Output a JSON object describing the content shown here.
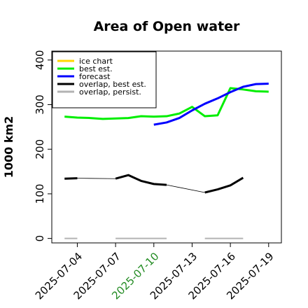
{
  "chart_data": {
    "type": "line",
    "title": "Area of Open water",
    "ylabel": "1000 km2",
    "xlabel": "",
    "x_start": "2025-07-02",
    "x_end": "2025-07-20",
    "ylim": [
      -10,
      420
    ],
    "yticks": [
      0,
      100,
      200,
      300,
      400
    ],
    "xticks": [
      {
        "date": "2025-07-04",
        "label": "2025-07-04",
        "color": "#000000"
      },
      {
        "date": "2025-07-07",
        "label": "2025-07-07",
        "color": "#000000"
      },
      {
        "date": "2025-07-10",
        "label": "2025-07-10",
        "color": "#228b22"
      },
      {
        "date": "2025-07-13",
        "label": "2025-07-13",
        "color": "#000000"
      },
      {
        "date": "2025-07-16",
        "label": "2025-07-16",
        "color": "#000000"
      },
      {
        "date": "2025-07-19",
        "label": "2025-07-19",
        "color": "#000000"
      }
    ],
    "legend_position": "top-left",
    "grid": false,
    "series": [
      {
        "name": "ice chart",
        "color": "#ffd700",
        "width": 3,
        "segments": []
      },
      {
        "name": "best est.",
        "color": "#00ee00",
        "width": 3,
        "segments": [
          [
            [
              "2025-07-03",
              273
            ],
            [
              "2025-07-04",
              271
            ],
            [
              "2025-07-05",
              270
            ],
            [
              "2025-07-06",
              268
            ],
            [
              "2025-07-07",
              269
            ],
            [
              "2025-07-08",
              270
            ],
            [
              "2025-07-09",
              274
            ],
            [
              "2025-07-10",
              273
            ],
            [
              "2025-07-11",
              274
            ],
            [
              "2025-07-12",
              280
            ],
            [
              "2025-07-13",
              295
            ],
            [
              "2025-07-14",
              274
            ],
            [
              "2025-07-15",
              276
            ],
            [
              "2025-07-16",
              337
            ],
            [
              "2025-07-17",
              334
            ],
            [
              "2025-07-18",
              330
            ],
            [
              "2025-07-19",
              329
            ]
          ]
        ]
      },
      {
        "name": "forecast",
        "color": "#0000ff",
        "width": 3,
        "segments": [
          [
            [
              "2025-07-10",
              255
            ],
            [
              "2025-07-11",
              260
            ],
            [
              "2025-07-12",
              270
            ],
            [
              "2025-07-13",
              287
            ],
            [
              "2025-07-14",
              302
            ],
            [
              "2025-07-15",
              314
            ],
            [
              "2025-07-16",
              328
            ],
            [
              "2025-07-17",
              340
            ],
            [
              "2025-07-18",
              346
            ],
            [
              "2025-07-19",
              347
            ]
          ]
        ]
      },
      {
        "name": "overlap, best est.",
        "color": "#000000",
        "width": 3,
        "segments": [
          [
            [
              "2025-07-03",
              134
            ],
            [
              "2025-07-04",
              135
            ]
          ],
          [
            [
              "2025-07-07",
              134
            ],
            [
              "2025-07-08",
              142
            ],
            [
              "2025-07-09",
              129
            ],
            [
              "2025-07-10",
              122
            ],
            [
              "2025-07-11",
              120
            ]
          ],
          [
            [
              "2025-07-14",
              103
            ],
            [
              "2025-07-15",
              110
            ],
            [
              "2025-07-16",
              119
            ],
            [
              "2025-07-17",
              136
            ]
          ]
        ]
      },
      {
        "name": "overlap, persist.",
        "color": "#b3b3b3",
        "width": 2,
        "segments": [
          [
            [
              "2025-07-03",
              0
            ],
            [
              "2025-07-04",
              0
            ]
          ],
          [
            [
              "2025-07-07",
              0
            ],
            [
              "2025-07-11",
              0
            ]
          ],
          [
            [
              "2025-07-14",
              0
            ],
            [
              "2025-07-17",
              0
            ]
          ]
        ]
      }
    ],
    "connectors": [
      {
        "color": "#000000",
        "points": [
          [
            "2025-07-04",
            135
          ],
          [
            "2025-07-07",
            134
          ]
        ]
      },
      {
        "color": "#000000",
        "points": [
          [
            "2025-07-11",
            120
          ],
          [
            "2025-07-14",
            103
          ]
        ]
      }
    ]
  }
}
